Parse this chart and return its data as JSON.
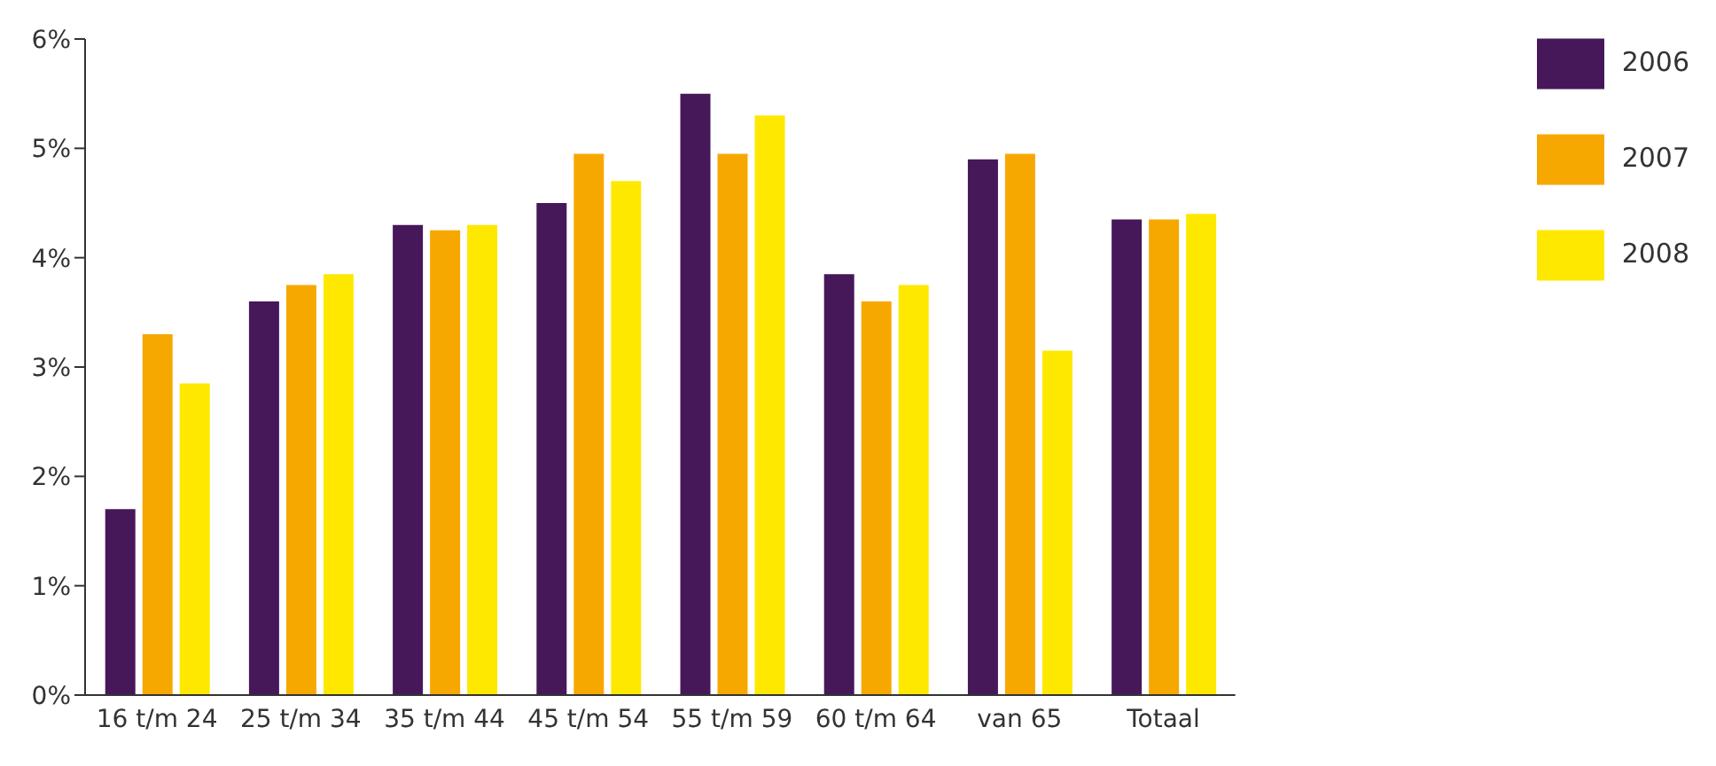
{
  "chart_data": {
    "type": "bar",
    "categories": [
      "16 t/m 24",
      "25 t/m 34",
      "35 t/m 44",
      "45 t/m 54",
      "55 t/m 59",
      "60 t/m 64",
      "van 65",
      "Totaal"
    ],
    "series": [
      {
        "name": "2006",
        "color": "#46185a",
        "values": [
          1.7,
          3.6,
          4.3,
          4.5,
          5.5,
          3.85,
          4.9,
          4.35
        ]
      },
      {
        "name": "2007",
        "color": "#f7a800",
        "values": [
          3.3,
          3.75,
          4.25,
          4.95,
          4.95,
          3.6,
          4.95,
          4.35
        ]
      },
      {
        "name": "2008",
        "color": "#ffe800",
        "values": [
          2.85,
          3.85,
          4.3,
          4.7,
          5.3,
          3.75,
          3.15,
          4.4
        ]
      }
    ],
    "ylim": [
      0,
      6
    ],
    "yticks": [
      {
        "value": 0,
        "label": "0%"
      },
      {
        "value": 1,
        "label": "1%"
      },
      {
        "value": 2,
        "label": "2%"
      },
      {
        "value": 3,
        "label": "3%"
      },
      {
        "value": 4,
        "label": "4%"
      },
      {
        "value": 5,
        "label": "5%"
      },
      {
        "value": 6,
        "label": "6%"
      }
    ],
    "grid": false,
    "legend": "top right"
  }
}
